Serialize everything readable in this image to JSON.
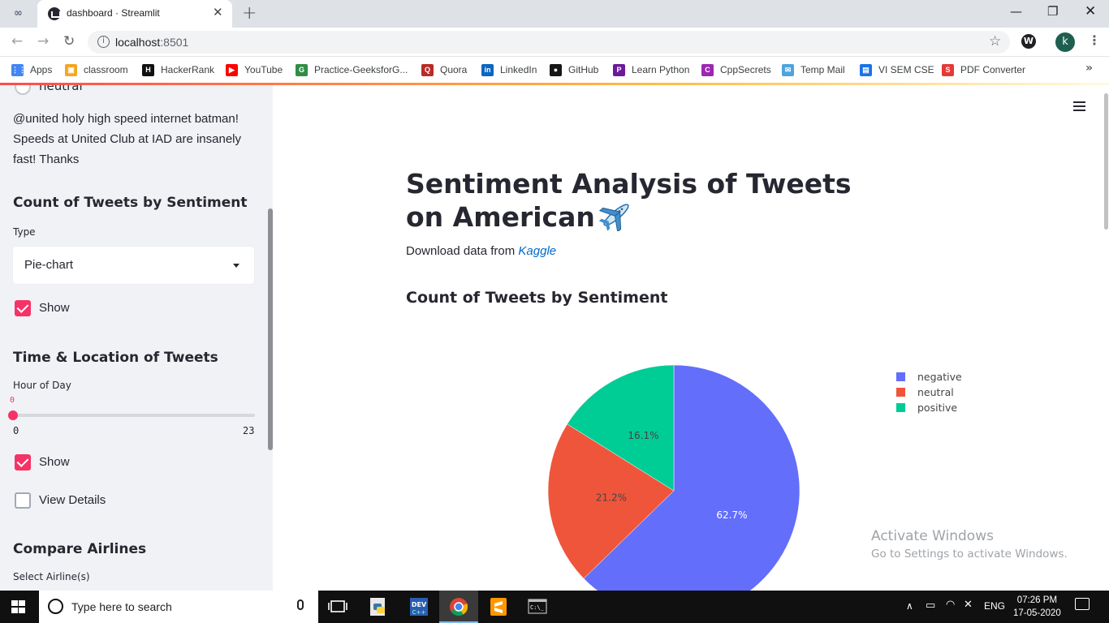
{
  "browser": {
    "tab_title": "dashboard · Streamlit",
    "url_host": "localhost",
    "url_port": ":8501",
    "profile_initial": "k",
    "bookmarks": [
      {
        "label": "Apps",
        "icon": "apps-grid-icon",
        "color": "#4285f4"
      },
      {
        "label": "classroom",
        "icon": "classroom-icon",
        "color": "#f5a623"
      },
      {
        "label": "HackerRank",
        "icon": "hackerrank-icon",
        "color": "#111111"
      },
      {
        "label": "YouTube",
        "icon": "youtube-icon",
        "color": "#ff0000"
      },
      {
        "label": "Practice-GeeksforG...",
        "icon": "geeksforgeeks-icon",
        "color": "#2f8d46"
      },
      {
        "label": "Quora",
        "icon": "quora-icon",
        "color": "#b92b27"
      },
      {
        "label": "LinkedIn",
        "icon": "linkedin-icon",
        "color": "#0a66c2"
      },
      {
        "label": "GitHub",
        "icon": "github-icon",
        "color": "#181717"
      },
      {
        "label": "Learn Python",
        "icon": "learnpython-icon",
        "color": "#6a1b9a"
      },
      {
        "label": "CppSecrets",
        "icon": "cppsecrets-icon",
        "color": "#9c27b0"
      },
      {
        "label": "Temp Mail",
        "icon": "mail-icon",
        "color": "#4fa3e0"
      },
      {
        "label": "VI SEM CSE",
        "icon": "contact-icon",
        "color": "#1a73e8"
      },
      {
        "label": "PDF Converter",
        "icon": "pdf-icon",
        "color": "#e53935"
      }
    ]
  },
  "sidebar": {
    "radio_partial_label": "neutral",
    "tweet_text": "@united holy high speed internet batman! Speeds at United Club at IAD are insanely fast! Thanks",
    "count_section": {
      "heading": "Count of Tweets by Sentiment",
      "type_label": "Type",
      "type_value": "Pie-chart",
      "show_label": "Show"
    },
    "time_section": {
      "heading": "Time & Location of Tweets",
      "hour_label": "Hour of Day",
      "slider_value": "0",
      "slider_min": "0",
      "slider_max": "23",
      "show_label": "Show",
      "details_label": "View Details"
    },
    "compare_section": {
      "heading": "Compare Airlines",
      "select_label": "Select Airline(s)"
    }
  },
  "main": {
    "title": "Sentiment Analysis of Tweets on American",
    "download_prefix": "Download data from ",
    "download_link": "Kaggle",
    "chart_heading": "Count of Tweets by Sentiment"
  },
  "chart_data": {
    "type": "pie",
    "categories": [
      "negative",
      "neutral",
      "positive"
    ],
    "values": [
      62.7,
      21.2,
      16.1
    ],
    "labels": [
      "62.7%",
      "21.2%",
      "16.1%"
    ],
    "colors": [
      "#636efa",
      "#ef553b",
      "#00cc96"
    ],
    "legend": "right"
  },
  "watermark": {
    "line1": "Activate Windows",
    "line2": "Go to Settings to activate Windows."
  },
  "taskbar": {
    "search_placeholder": "Type here to search",
    "language": "ENG",
    "time": "07:26 PM",
    "date": "17-05-2020"
  }
}
